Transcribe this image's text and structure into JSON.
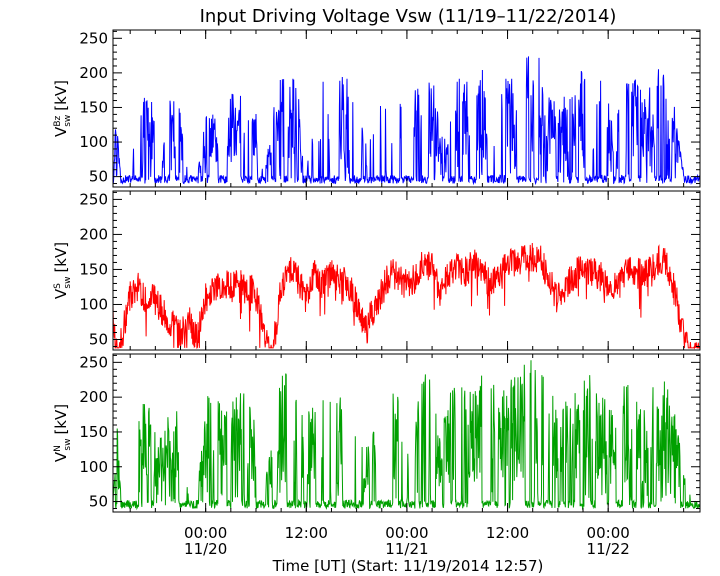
{
  "chart_data": {
    "type": "line",
    "title": "Input Driving Voltage Vsw (11/19–11/22/2014)",
    "xlabel": "Time [UT] (Start: 11/19/2014 12:57)",
    "x_ticks": [
      {
        "hours": 11.05,
        "line1": "00:00",
        "line2": "11/20"
      },
      {
        "hours": 23.05,
        "line1": "12:00",
        "line2": ""
      },
      {
        "hours": 35.05,
        "line1": "00:00",
        "line2": "11/21"
      },
      {
        "hours": 47.05,
        "line1": "12:00",
        "line2": ""
      },
      {
        "hours": 59.05,
        "line1": "00:00",
        "line2": "11/22"
      }
    ],
    "x_range_hours": [
      0,
      70
    ],
    "panels": [
      {
        "name": "Bz",
        "ylabel_main": "V",
        "ylabel_sup": "Bz",
        "ylabel_sub": "sw",
        "ylabel_unit": "[kV]",
        "color": "#0000ff",
        "ylim": [
          35,
          262
        ],
        "yticks": [
          50,
          100,
          150,
          200,
          250
        ],
        "envelope": [
          [
            0,
            40
          ],
          [
            0.3,
            150
          ],
          [
            1,
            40
          ],
          [
            2,
            40
          ],
          [
            3,
            165
          ],
          [
            4,
            175
          ],
          [
            5,
            150
          ],
          [
            6,
            140
          ],
          [
            7,
            165
          ],
          [
            8,
            165
          ],
          [
            9,
            40
          ],
          [
            10,
            40
          ],
          [
            11,
            155
          ],
          [
            12,
            170
          ],
          [
            13,
            165
          ],
          [
            14,
            170
          ],
          [
            15,
            180
          ],
          [
            16,
            170
          ],
          [
            17,
            150
          ],
          [
            18,
            40
          ],
          [
            19,
            150
          ],
          [
            20,
            195
          ],
          [
            21,
            210
          ],
          [
            22,
            185
          ],
          [
            23,
            40
          ],
          [
            24,
            175
          ],
          [
            25,
            190
          ],
          [
            26,
            180
          ],
          [
            27,
            200
          ],
          [
            28,
            200
          ],
          [
            29,
            170
          ],
          [
            30,
            100
          ],
          [
            31,
            150
          ],
          [
            32,
            170
          ],
          [
            33,
            185
          ],
          [
            34,
            165
          ],
          [
            35,
            150
          ],
          [
            36,
            210
          ],
          [
            37,
            225
          ],
          [
            38,
            210
          ],
          [
            39,
            120
          ],
          [
            40,
            165
          ],
          [
            41,
            200
          ],
          [
            42,
            200
          ],
          [
            43,
            175
          ],
          [
            44,
            210
          ],
          [
            45,
            200
          ],
          [
            46,
            195
          ],
          [
            47,
            195
          ],
          [
            48,
            215
          ],
          [
            49,
            230
          ],
          [
            50,
            230
          ],
          [
            51,
            225
          ],
          [
            52,
            190
          ],
          [
            53,
            150
          ],
          [
            54,
            170
          ],
          [
            55,
            175
          ],
          [
            56,
            210
          ],
          [
            57,
            215
          ],
          [
            58,
            195
          ],
          [
            59,
            160
          ],
          [
            60,
            140
          ],
          [
            61,
            200
          ],
          [
            62,
            205
          ],
          [
            63,
            175
          ],
          [
            64,
            180
          ],
          [
            65,
            210
          ],
          [
            66,
            195
          ],
          [
            67,
            150
          ],
          [
            68,
            60
          ],
          [
            69,
            40
          ],
          [
            70,
            40
          ]
        ],
        "seed": 11,
        "mode": "gated"
      },
      {
        "name": "S",
        "ylabel_main": "V",
        "ylabel_sup": "S",
        "ylabel_sub": "sw",
        "ylabel_unit": "[kV]",
        "color": "#ff0000",
        "ylim": [
          35,
          262
        ],
        "yticks": [
          50,
          100,
          150,
          200,
          250
        ],
        "envelope": [
          [
            0,
            110
          ],
          [
            0.5,
            45
          ],
          [
            1,
            70
          ],
          [
            2,
            135
          ],
          [
            3,
            150
          ],
          [
            4,
            125
          ],
          [
            5,
            130
          ],
          [
            6,
            110
          ],
          [
            7,
            95
          ],
          [
            8,
            80
          ],
          [
            9,
            100
          ],
          [
            10,
            75
          ],
          [
            11,
            130
          ],
          [
            12,
            145
          ],
          [
            13,
            150
          ],
          [
            14,
            150
          ],
          [
            15,
            155
          ],
          [
            16,
            140
          ],
          [
            17,
            145
          ],
          [
            18,
            80
          ],
          [
            19,
            45
          ],
          [
            20,
            150
          ],
          [
            21,
            170
          ],
          [
            22,
            160
          ],
          [
            23,
            130
          ],
          [
            24,
            165
          ],
          [
            25,
            150
          ],
          [
            26,
            165
          ],
          [
            27,
            160
          ],
          [
            28,
            150
          ],
          [
            29,
            125
          ],
          [
            30,
            90
          ],
          [
            31,
            110
          ],
          [
            32,
            140
          ],
          [
            33,
            165
          ],
          [
            34,
            165
          ],
          [
            35,
            150
          ],
          [
            36,
            160
          ],
          [
            37,
            185
          ],
          [
            38,
            175
          ],
          [
            39,
            140
          ],
          [
            40,
            165
          ],
          [
            41,
            175
          ],
          [
            42,
            170
          ],
          [
            43,
            180
          ],
          [
            44,
            175
          ],
          [
            45,
            150
          ],
          [
            46,
            165
          ],
          [
            47,
            180
          ],
          [
            48,
            185
          ],
          [
            49,
            190
          ],
          [
            50,
            190
          ],
          [
            51,
            185
          ],
          [
            52,
            160
          ],
          [
            53,
            130
          ],
          [
            54,
            150
          ],
          [
            55,
            165
          ],
          [
            56,
            175
          ],
          [
            57,
            170
          ],
          [
            58,
            165
          ],
          [
            59,
            150
          ],
          [
            60,
            145
          ],
          [
            61,
            165
          ],
          [
            62,
            170
          ],
          [
            63,
            165
          ],
          [
            64,
            170
          ],
          [
            65,
            185
          ],
          [
            66,
            180
          ],
          [
            67,
            140
          ],
          [
            68,
            80
          ],
          [
            69,
            45
          ],
          [
            70,
            55
          ]
        ],
        "seed": 29,
        "mode": "noisy"
      },
      {
        "name": "N",
        "ylabel_main": "V",
        "ylabel_sup": "N",
        "ylabel_sub": "sw",
        "ylabel_unit": "[kV]",
        "color": "#00a000",
        "ylim": [
          35,
          262
        ],
        "yticks": [
          50,
          100,
          150,
          200,
          250
        ],
        "envelope": [
          [
            0,
            50
          ],
          [
            0.5,
            170
          ],
          [
            1,
            45
          ],
          [
            2,
            150
          ],
          [
            3,
            200
          ],
          [
            4,
            210
          ],
          [
            5,
            150
          ],
          [
            6,
            140
          ],
          [
            7,
            200
          ],
          [
            8,
            170
          ],
          [
            9,
            60
          ],
          [
            10,
            50
          ],
          [
            11,
            200
          ],
          [
            12,
            220
          ],
          [
            13,
            180
          ],
          [
            14,
            210
          ],
          [
            15,
            220
          ],
          [
            16,
            200
          ],
          [
            17,
            170
          ],
          [
            18,
            60
          ],
          [
            19,
            170
          ],
          [
            20,
            235
          ],
          [
            21,
            240
          ],
          [
            22,
            220
          ],
          [
            23,
            170
          ],
          [
            24,
            200
          ],
          [
            25,
            210
          ],
          [
            26,
            220
          ],
          [
            27,
            215
          ],
          [
            28,
            215
          ],
          [
            29,
            190
          ],
          [
            30,
            120
          ],
          [
            31,
            160
          ],
          [
            32,
            200
          ],
          [
            33,
            225
          ],
          [
            34,
            210
          ],
          [
            35,
            160
          ],
          [
            36,
            215
          ],
          [
            37,
            250
          ],
          [
            38,
            240
          ],
          [
            39,
            140
          ],
          [
            40,
            200
          ],
          [
            41,
            235
          ],
          [
            42,
            230
          ],
          [
            43,
            210
          ],
          [
            44,
            240
          ],
          [
            45,
            230
          ],
          [
            46,
            220
          ],
          [
            47,
            230
          ],
          [
            48,
            245
          ],
          [
            49,
            255
          ],
          [
            50,
            255
          ],
          [
            51,
            250
          ],
          [
            52,
            225
          ],
          [
            53,
            180
          ],
          [
            54,
            200
          ],
          [
            55,
            215
          ],
          [
            56,
            235
          ],
          [
            57,
            235
          ],
          [
            58,
            215
          ],
          [
            59,
            190
          ],
          [
            60,
            170
          ],
          [
            61,
            225
          ],
          [
            62,
            225
          ],
          [
            63,
            205
          ],
          [
            64,
            210
          ],
          [
            65,
            235
          ],
          [
            66,
            220
          ],
          [
            67,
            185
          ],
          [
            68,
            100
          ],
          [
            69,
            50
          ],
          [
            70,
            60
          ]
        ],
        "seed": 47,
        "mode": "gated"
      }
    ]
  }
}
